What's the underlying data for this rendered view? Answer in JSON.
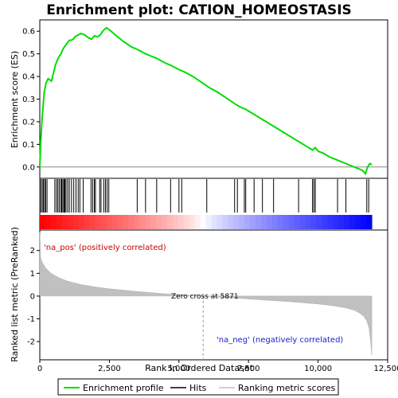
{
  "chart_data": {
    "type": "line",
    "title": "Enrichment plot: CATION_HOMEOSTASIS",
    "top_panel": {
      "ylabel": "Enrichment score (ES)",
      "ylim": [
        -0.05,
        0.65
      ],
      "yticks": [
        0.0,
        0.1,
        0.2,
        0.3,
        0.4,
        0.5,
        0.6
      ],
      "ytick_labels": [
        "0.0",
        "0.1",
        "0.2",
        "0.3",
        "0.4",
        "0.5",
        "0.6"
      ],
      "series": [
        {
          "name": "Enrichment profile",
          "color": "#00dd00",
          "x": [
            0,
            30,
            80,
            120,
            160,
            220,
            300,
            420,
            500,
            560,
            620,
            700,
            760,
            830,
            880,
            940,
            1000,
            1060,
            1120,
            1200,
            1260,
            1330,
            1400,
            1480,
            1600,
            1760,
            1860,
            1960,
            2080,
            2180,
            2260,
            2340,
            2400,
            2460,
            2560,
            2700,
            3000,
            3300,
            3500,
            3800,
            4000,
            4200,
            4500,
            4700,
            5000,
            5200,
            5500,
            5800,
            6100,
            6400,
            6700,
            7000,
            7200,
            7400,
            7600,
            7800,
            8000,
            8200,
            8400,
            8600,
            8800,
            9000,
            9200,
            9400,
            9600,
            9800,
            9900,
            10000,
            10200,
            10400,
            10600,
            10800,
            11000,
            11200,
            11400,
            11600,
            11700,
            11780,
            11860,
            11930
          ],
          "y": [
            0.0,
            0.1,
            0.21,
            0.27,
            0.33,
            0.37,
            0.39,
            0.38,
            0.42,
            0.45,
            0.47,
            0.49,
            0.5,
            0.52,
            0.53,
            0.54,
            0.55,
            0.56,
            0.56,
            0.565,
            0.575,
            0.58,
            0.585,
            0.59,
            0.585,
            0.57,
            0.565,
            0.58,
            0.575,
            0.585,
            0.6,
            0.61,
            0.615,
            0.61,
            0.6,
            0.585,
            0.555,
            0.53,
            0.52,
            0.5,
            0.49,
            0.48,
            0.46,
            0.45,
            0.43,
            0.42,
            0.4,
            0.375,
            0.35,
            0.33,
            0.305,
            0.28,
            0.265,
            0.255,
            0.24,
            0.225,
            0.21,
            0.195,
            0.18,
            0.165,
            0.15,
            0.135,
            0.12,
            0.105,
            0.09,
            0.075,
            0.085,
            0.07,
            0.06,
            0.045,
            0.035,
            0.025,
            0.015,
            0.005,
            -0.005,
            -0.015,
            -0.03,
            0.0,
            0.015,
            0.01
          ]
        }
      ]
    },
    "hits_panel": {
      "hit_positions": [
        40,
        90,
        130,
        175,
        210,
        260,
        540,
        600,
        650,
        700,
        760,
        790,
        830,
        870,
        900,
        940,
        1000,
        1060,
        1140,
        1220,
        1300,
        1380,
        1440,
        1560,
        1840,
        1900,
        1960,
        2000,
        2150,
        2200,
        2300,
        2360,
        2420,
        2480,
        3500,
        3800,
        4200,
        4700,
        5000,
        5100,
        6000,
        7000,
        7100,
        7350,
        7400,
        7700,
        8000,
        8400,
        9300,
        9800,
        9850,
        9900,
        10700,
        11000,
        11750,
        11820
      ]
    },
    "ranked_panel": {
      "ylabel": "Ranked list metric (PreRanked)",
      "ylim": [
        -2.8,
        2.9
      ],
      "yticks": [
        -2,
        -1,
        0,
        1,
        2
      ],
      "ytick_labels": [
        "-2",
        "-1",
        "0",
        "1",
        "2"
      ],
      "zero_cross": 5871,
      "zero_cross_label": "Zero cross at 5871",
      "pos_label": "'na_pos' (positively correlated)",
      "neg_label": "'na_neg' (negatively correlated)",
      "metric_x": [
        0,
        30,
        80,
        200,
        400,
        700,
        1000,
        1500,
        2000,
        2500,
        3000,
        3500,
        4000,
        4500,
        5000,
        5500,
        5871,
        6500,
        7000,
        7500,
        8000,
        8500,
        9000,
        9500,
        10000,
        10500,
        11000,
        11300,
        11500,
        11650,
        11750,
        11830,
        11880,
        11930
      ],
      "metric_y": [
        2.8,
        1.7,
        1.5,
        1.25,
        1.0,
        0.8,
        0.65,
        0.5,
        0.4,
        0.32,
        0.26,
        0.2,
        0.15,
        0.1,
        0.06,
        0.02,
        0.0,
        -0.05,
        -0.09,
        -0.13,
        -0.17,
        -0.21,
        -0.25,
        -0.3,
        -0.35,
        -0.42,
        -0.52,
        -0.62,
        -0.75,
        -0.9,
        -1.1,
        -1.4,
        -1.9,
        -2.6
      ]
    },
    "xlabel": "Rank in Ordered Dataset",
    "xlim": [
      0,
      12500
    ],
    "xticks": [
      0,
      2500,
      5000,
      7500,
      10000,
      12500
    ],
    "xtick_labels": [
      "0",
      "2,500",
      "5,000",
      "7,500",
      "10,000",
      "12,500"
    ],
    "total_ranks": 11930,
    "legend": [
      {
        "name": "Enrichment profile",
        "color": "#00dd00"
      },
      {
        "name": "Hits",
        "color": "#000000"
      },
      {
        "name": "Ranking metric scores",
        "color": "#c0c0c0"
      }
    ]
  }
}
